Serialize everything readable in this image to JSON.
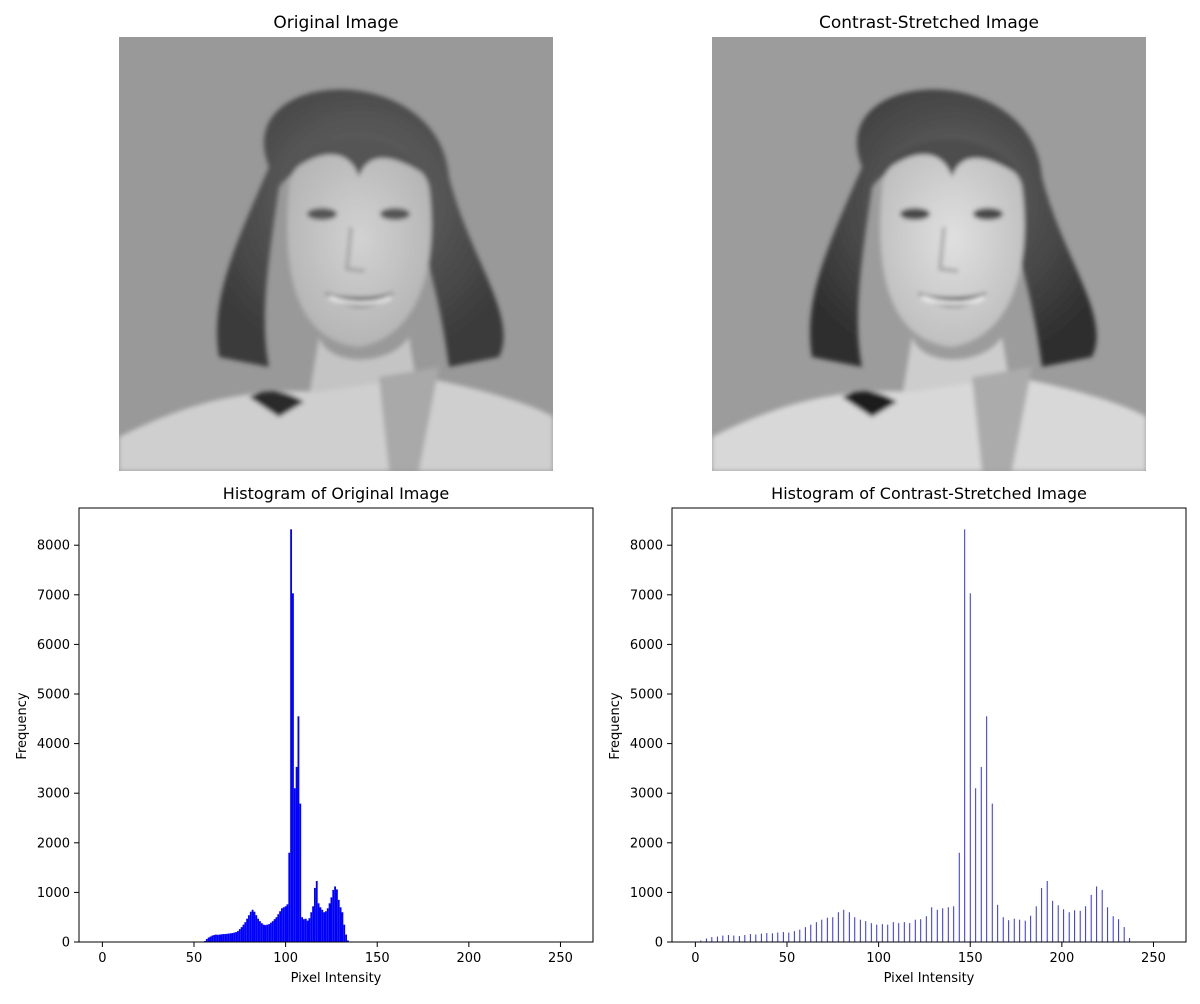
{
  "chart_data": [
    {
      "type": "image",
      "title": "Original Image",
      "description": "grayscale portrait photo"
    },
    {
      "type": "image",
      "title": "Contrast-Stretched Image",
      "description": "grayscale portrait photo with stretched contrast"
    },
    {
      "type": "bar",
      "title": "Histogram of Original Image",
      "xlabel": "Pixel Intensity",
      "ylabel": "Frequency",
      "xlim": [
        -12.75,
        267.75
      ],
      "ylim": [
        0,
        8750
      ],
      "xticks": [
        0,
        50,
        100,
        150,
        200,
        250
      ],
      "yticks": [
        0,
        1000,
        2000,
        3000,
        4000,
        5000,
        6000,
        7000,
        8000
      ],
      "bar_color": "#0000ff",
      "x": [
        56,
        57,
        58,
        59,
        60,
        61,
        62,
        63,
        64,
        65,
        66,
        67,
        68,
        69,
        70,
        71,
        72,
        73,
        74,
        75,
        76,
        77,
        78,
        79,
        80,
        81,
        82,
        83,
        84,
        85,
        86,
        87,
        88,
        89,
        90,
        91,
        92,
        93,
        94,
        95,
        96,
        97,
        98,
        99,
        100,
        101,
        102,
        103,
        104,
        105,
        106,
        107,
        108,
        109,
        110,
        111,
        112,
        113,
        114,
        115,
        116,
        117,
        118,
        119,
        120,
        121,
        122,
        123,
        124,
        125,
        126,
        127,
        128,
        129,
        130,
        131,
        132,
        133,
        134,
        135,
        136,
        137,
        138,
        139,
        140
      ],
      "values": [
        20,
        60,
        90,
        110,
        130,
        140,
        150,
        145,
        150,
        155,
        160,
        160,
        165,
        170,
        175,
        180,
        190,
        200,
        220,
        260,
        300,
        350,
        400,
        470,
        540,
        610,
        650,
        610,
        540,
        470,
        420,
        380,
        350,
        340,
        350,
        360,
        390,
        420,
        460,
        500,
        560,
        620,
        680,
        700,
        720,
        760,
        1800,
        8320,
        7030,
        3100,
        3530,
        4550,
        2790,
        500,
        460,
        470,
        430,
        480,
        600,
        720,
        1090,
        1230,
        780,
        700,
        650,
        600,
        620,
        680,
        780,
        900,
        1050,
        1120,
        1060,
        850,
        700,
        600,
        350,
        150,
        30,
        0,
        0,
        0,
        0,
        0,
        0
      ]
    },
    {
      "type": "bar",
      "title": "Histogram of Contrast-Stretched Image",
      "xlabel": "Pixel Intensity",
      "ylabel": "Frequency",
      "xlim": [
        -12.75,
        267.75
      ],
      "ylim": [
        0,
        8750
      ],
      "xticks": [
        0,
        50,
        100,
        150,
        200,
        250
      ],
      "yticks": [
        0,
        1000,
        2000,
        3000,
        4000,
        5000,
        6000,
        7000,
        8000
      ],
      "bar_color": "#0000ff",
      "x": [
        3,
        6,
        9,
        12,
        15,
        18,
        21,
        24,
        27,
        30,
        33,
        36,
        39,
        42,
        45,
        48,
        51,
        54,
        57,
        60,
        63,
        66,
        69,
        72,
        75,
        78,
        81,
        84,
        87,
        90,
        93,
        96,
        99,
        102,
        105,
        108,
        111,
        114,
        117,
        120,
        123,
        126,
        129,
        132,
        135,
        138,
        141,
        144,
        147,
        150,
        153,
        156,
        159,
        162,
        165,
        168,
        171,
        174,
        177,
        180,
        183,
        186,
        189,
        192,
        195,
        198,
        201,
        204,
        207,
        210,
        213,
        216,
        219,
        222,
        225,
        228,
        231,
        234,
        237
      ],
      "values": [
        30,
        70,
        100,
        110,
        130,
        140,
        130,
        120,
        140,
        160,
        150,
        170,
        180,
        175,
        190,
        200,
        190,
        220,
        250,
        300,
        350,
        400,
        450,
        490,
        500,
        600,
        650,
        600,
        500,
        450,
        420,
        380,
        350,
        360,
        350,
        400,
        380,
        400,
        380,
        450,
        460,
        520,
        700,
        650,
        680,
        700,
        720,
        1800,
        8320,
        7030,
        3100,
        3530,
        4550,
        2790,
        750,
        500,
        440,
        470,
        450,
        430,
        530,
        720,
        1090,
        1230,
        830,
        740,
        660,
        600,
        640,
        630,
        720,
        950,
        1120,
        1050,
        700,
        520,
        460,
        300,
        80
      ]
    }
  ]
}
